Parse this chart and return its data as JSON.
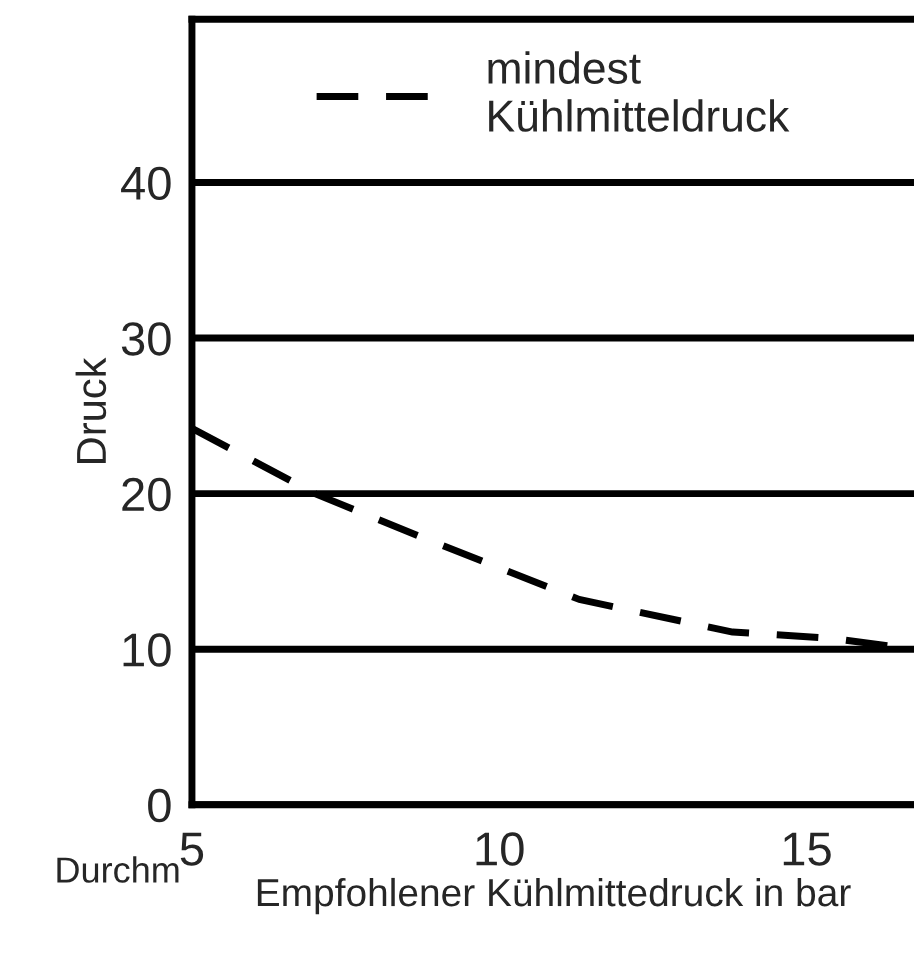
{
  "chart_data": {
    "type": "line",
    "xlabel": "Empfohlener Kühlmittedruck in bar",
    "ylabel": "Druck",
    "annotations": [
      "Durchm"
    ],
    "series": [
      {
        "name": "mindest\nKühlmitteldruck",
        "color": "#000000",
        "x": [
          5,
          7.0,
          8.8,
          11.3,
          13.8,
          15.4,
          16.75
        ],
        "values": [
          24.2,
          20,
          17.1,
          13.2,
          11.1,
          10.7,
          10.0
        ]
      }
    ],
    "xlim": [
      5,
      16.75
    ],
    "xticks": [
      5,
      10,
      15
    ],
    "ylim": [
      0,
      50.5
    ],
    "yticks": [
      0,
      10,
      20,
      30,
      40
    ],
    "grid": "y",
    "legend": "top",
    "line_style": "dashed",
    "marker": "none"
  }
}
